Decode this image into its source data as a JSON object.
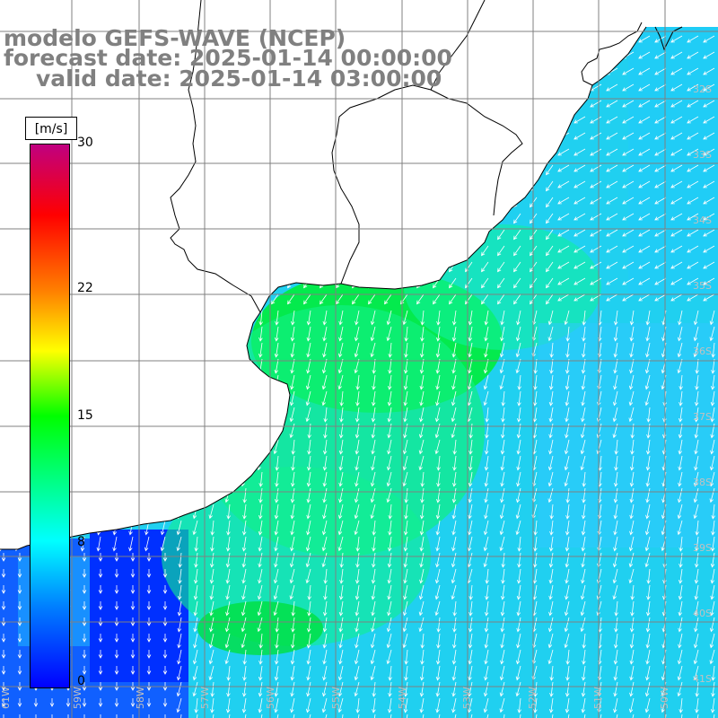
{
  "header": {
    "model_line": "modelo GEFS-WAVE (NCEP)",
    "forecast_line": "forecast date: 2025-01-14 00:00:00",
    "valid_line": "valid date: 2025-01-14 03:00:00"
  },
  "colorbar": {
    "unit": "[m/s]",
    "min": 0,
    "max": 30,
    "ticks": [
      "30",
      "22",
      "15",
      "8",
      "0"
    ],
    "tick_values": [
      30,
      22,
      15,
      8,
      0
    ],
    "colors": [
      "#0000ff",
      "#0080ff",
      "#00ffff",
      "#00ff00",
      "#ffff00",
      "#ff8000",
      "#ff0000",
      "#c00080"
    ]
  },
  "map": {
    "lon_labels": [
      "61W",
      "59W",
      "58W",
      "57W",
      "56W",
      "55W",
      "54W",
      "53W",
      "52W",
      "51W",
      "50W",
      "49W",
      "48W"
    ],
    "lat_labels": [
      "32S",
      "33S",
      "34S",
      "35S",
      "36S",
      "37S",
      "38S",
      "39S",
      "40S",
      "41S"
    ],
    "land_color": "#ffffff",
    "grid_color": "#808080",
    "arrow_color": "#ffffff",
    "wind_from": "north-northeast"
  }
}
